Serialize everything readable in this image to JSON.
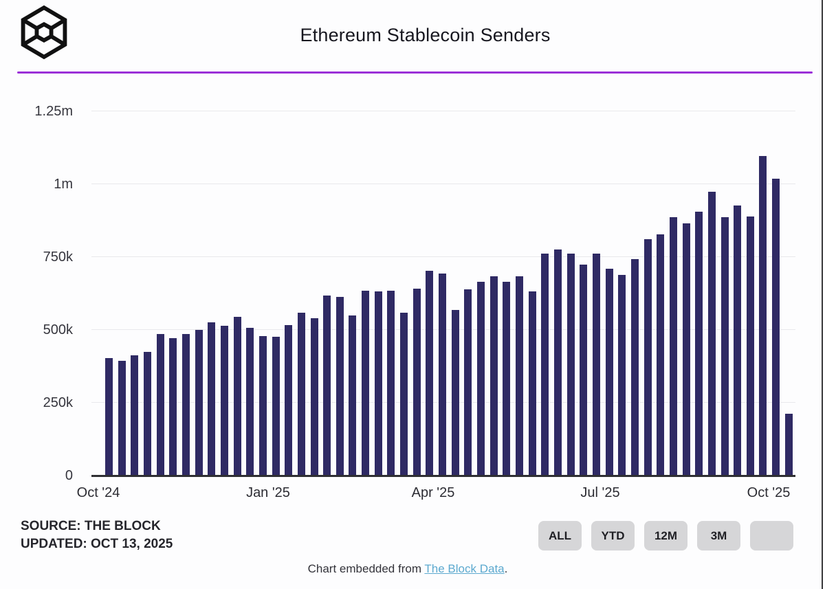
{
  "header": {
    "title": "Ethereum Stablecoin Senders",
    "logo": "the-block-cube-logo"
  },
  "chart_data": {
    "type": "bar",
    "title": "Ethereum Stablecoin Senders",
    "x_unit": "week",
    "x_tick_labels": [
      "Oct '24",
      "Jan '25",
      "Apr '25",
      "Jul '25",
      "Oct '25"
    ],
    "y_tick_labels": [
      "0",
      "250k",
      "500k",
      "750k",
      "1m",
      "1.25m"
    ],
    "y_ticks": [
      0,
      250000,
      500000,
      750000,
      1000000,
      1250000
    ],
    "ylim": [
      0,
      1250000
    ],
    "grid": "horizontal-only",
    "bar_color": "#2f2a64",
    "values": [
      404000,
      394000,
      412000,
      424000,
      487000,
      471000,
      485000,
      501000,
      525000,
      515000,
      545000,
      506000,
      478000,
      476000,
      516000,
      560000,
      541000,
      618000,
      614000,
      550000,
      634000,
      633000,
      634000,
      560000,
      642000,
      703000,
      693000,
      569000,
      640000,
      664000,
      683000,
      664000,
      685000,
      633000,
      762000,
      776000,
      762000,
      723000,
      762000,
      709000,
      688000,
      743000,
      811000,
      829000,
      886000,
      865000,
      905000,
      973000,
      886000,
      926000,
      890000,
      1096000,
      1020000,
      212000
    ]
  },
  "footer": {
    "source_line1": "SOURCE: THE BLOCK",
    "source_line2": "UPDATED: OCT 13, 2025",
    "buttons": [
      {
        "label": "ALL"
      },
      {
        "label": "YTD"
      },
      {
        "label": "12M"
      },
      {
        "label": "3M"
      },
      {
        "label": ""
      }
    ],
    "embed_prefix": "Chart embedded from ",
    "embed_link_text": "The Block Data",
    "embed_suffix": "."
  },
  "colors": {
    "bar": "#2f2a64",
    "divider": "#9b30d8",
    "link": "#5ca9cf",
    "gridline": "#e9e9ec",
    "baseline": "#2f2f33",
    "button_bg": "#d6d6d8"
  }
}
